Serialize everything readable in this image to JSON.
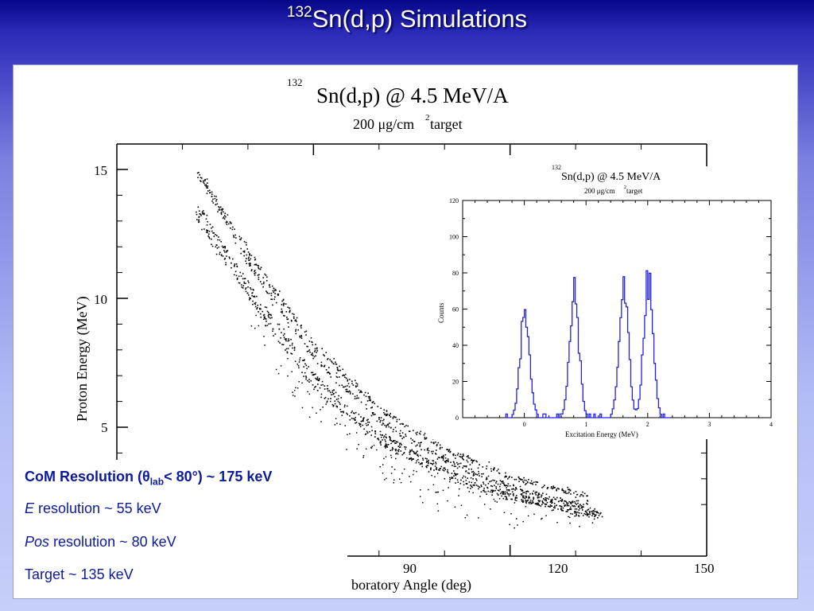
{
  "slide": {
    "title_sup": "132",
    "title_main": "Sn(d,p) Simulations"
  },
  "notes": {
    "com_prefix": "CoM Resolution (",
    "com_theta": "θ",
    "com_sub": "lab",
    "com_suffix": "< 80°) ~ 175 keV",
    "e_italic": "E",
    "e_rest": " resolution ~ 55 keV",
    "pos_italic": "Pos",
    "pos_rest": " resolution ~ 80 keV",
    "target": "Target ~ 135 keV"
  },
  "colors": {
    "text_blue": "#0c1a9e",
    "histogram_line": "#2020ee",
    "points": "#000000"
  },
  "chart_data": [
    {
      "type": "scatter",
      "title_sup": "132",
      "title": "Sn(d,p) @ 4.5 MeV/A",
      "subtitle": "200 μg/cm",
      "subtitle_sup": "2",
      "subtitle_tail": " target",
      "xlabel": "boratory Angle (deg)",
      "ylabel": "Proton Energy (MeV)",
      "xticks": [
        90,
        120,
        150
      ],
      "yticks": [
        5,
        10,
        15
      ],
      "ylim": [
        1.0,
        16.0
      ],
      "xlim": [
        60,
        150
      ],
      "series_curves": [
        {
          "points": [
            [
              73,
              14.7
            ],
            [
              80,
              11.4
            ],
            [
              90,
              7.7
            ],
            [
              100,
              5.3
            ],
            [
              110,
              3.75
            ],
            [
              120,
              2.7
            ],
            [
              128,
              2.15
            ],
            [
              132,
              1.95
            ]
          ]
        },
        {
          "points": [
            [
              72,
              14.9
            ],
            [
              80,
              11.8
            ],
            [
              90,
              8.2
            ],
            [
              100,
              5.75
            ],
            [
              110,
              4.15
            ],
            [
              120,
              3.1
            ],
            [
              130,
              2.45
            ],
            [
              132,
              2.3
            ]
          ]
        },
        {
          "points": [
            [
              72,
              13.7
            ],
            [
              80,
              10.5
            ],
            [
              90,
              7.0
            ],
            [
              100,
              4.75
            ],
            [
              110,
              3.35
            ],
            [
              120,
              2.45
            ],
            [
              130,
              1.9
            ],
            [
              134,
              1.7
            ]
          ]
        },
        {
          "points": [
            [
              72,
              13.3
            ],
            [
              80,
              10.1
            ],
            [
              90,
              6.6
            ],
            [
              100,
              4.45
            ],
            [
              110,
              3.1
            ],
            [
              120,
              2.3
            ],
            [
              130,
              1.7
            ],
            [
              134,
              1.55
            ]
          ]
        }
      ]
    },
    {
      "type": "line",
      "title_sup": "132",
      "title": "Sn(d,p) @ 4.5 MeV/A",
      "subtitle": "200 μg/cm",
      "subtitle_sup": "2",
      "subtitle_tail": " target",
      "xlabel": "Excitation Energy (MeV)",
      "ylabel": "Counts",
      "xlim": [
        -1,
        4
      ],
      "ylim": [
        0,
        120
      ],
      "xticks": [
        0,
        1,
        2,
        3,
        4
      ],
      "yticks": [
        0,
        20,
        40,
        60,
        80,
        100,
        120
      ],
      "peaks": [
        {
          "center": 0.0,
          "height": 59
        },
        {
          "center": 0.8,
          "height": 68
        },
        {
          "center": 1.6,
          "height": 70
        },
        {
          "center": 2.0,
          "height": 75
        }
      ]
    }
  ]
}
